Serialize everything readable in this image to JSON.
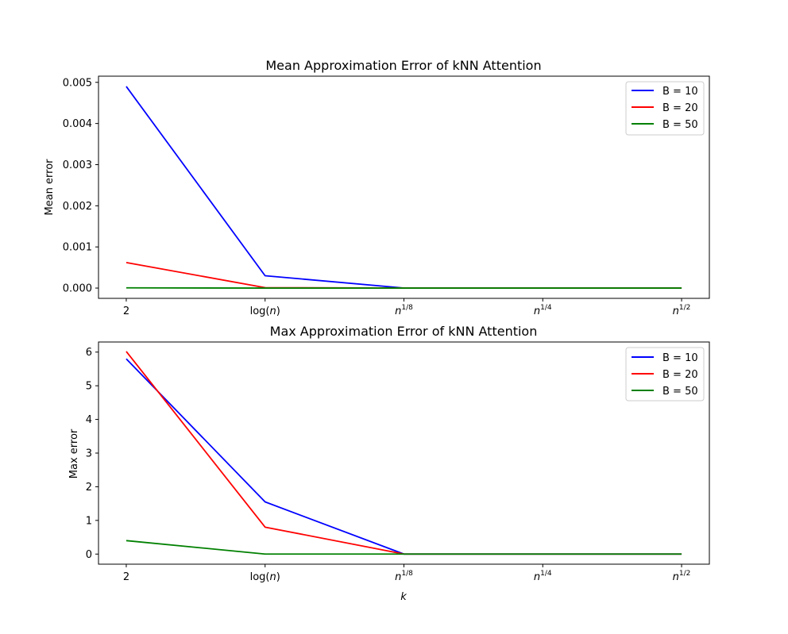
{
  "chart_data": [
    {
      "type": "line",
      "title": "Mean Approximation Error of kNN Attention",
      "xlabel": "",
      "ylabel": "Mean error",
      "categories": [
        "2",
        "log(n)",
        "n^{1/8}",
        "n^{1/4}",
        "n^{1/2}"
      ],
      "ylim": [
        -0.00025,
        0.00515
      ],
      "yticks": [
        0.0,
        0.001,
        0.002,
        0.003,
        0.004,
        0.005
      ],
      "ytick_labels": [
        "0.000",
        "0.001",
        "0.002",
        "0.003",
        "0.004",
        "0.005"
      ],
      "grid": false,
      "legend_position": "top-right",
      "series": [
        {
          "name": "B = 10",
          "color": "#0000ff",
          "values": [
            0.0049,
            0.0003,
            0.0,
            0.0,
            0.0
          ]
        },
        {
          "name": "B = 20",
          "color": "#ff0000",
          "values": [
            0.00062,
            1e-05,
            0.0,
            0.0,
            0.0
          ]
        },
        {
          "name": "B = 50",
          "color": "#008000",
          "values": [
            5e-06,
            0.0,
            0.0,
            0.0,
            0.0
          ]
        }
      ]
    },
    {
      "type": "line",
      "title": "Max Approximation Error of kNN Attention",
      "xlabel": "k",
      "ylabel": "Max error",
      "categories": [
        "2",
        "log(n)",
        "n^{1/8}",
        "n^{1/4}",
        "n^{1/2}"
      ],
      "ylim": [
        -0.3,
        6.3
      ],
      "yticks": [
        0,
        1,
        2,
        3,
        4,
        5,
        6
      ],
      "ytick_labels": [
        "0",
        "1",
        "2",
        "3",
        "4",
        "5",
        "6"
      ],
      "grid": false,
      "legend_position": "top-right",
      "series": [
        {
          "name": "B = 10",
          "color": "#0000ff",
          "values": [
            5.8,
            1.55,
            0.0,
            0.0,
            0.0
          ]
        },
        {
          "name": "B = 20",
          "color": "#ff0000",
          "values": [
            6.02,
            0.8,
            0.0,
            0.0,
            0.0
          ]
        },
        {
          "name": "B = 50",
          "color": "#008000",
          "values": [
            0.4,
            0.0,
            0.0,
            0.0,
            0.0
          ]
        }
      ]
    }
  ]
}
